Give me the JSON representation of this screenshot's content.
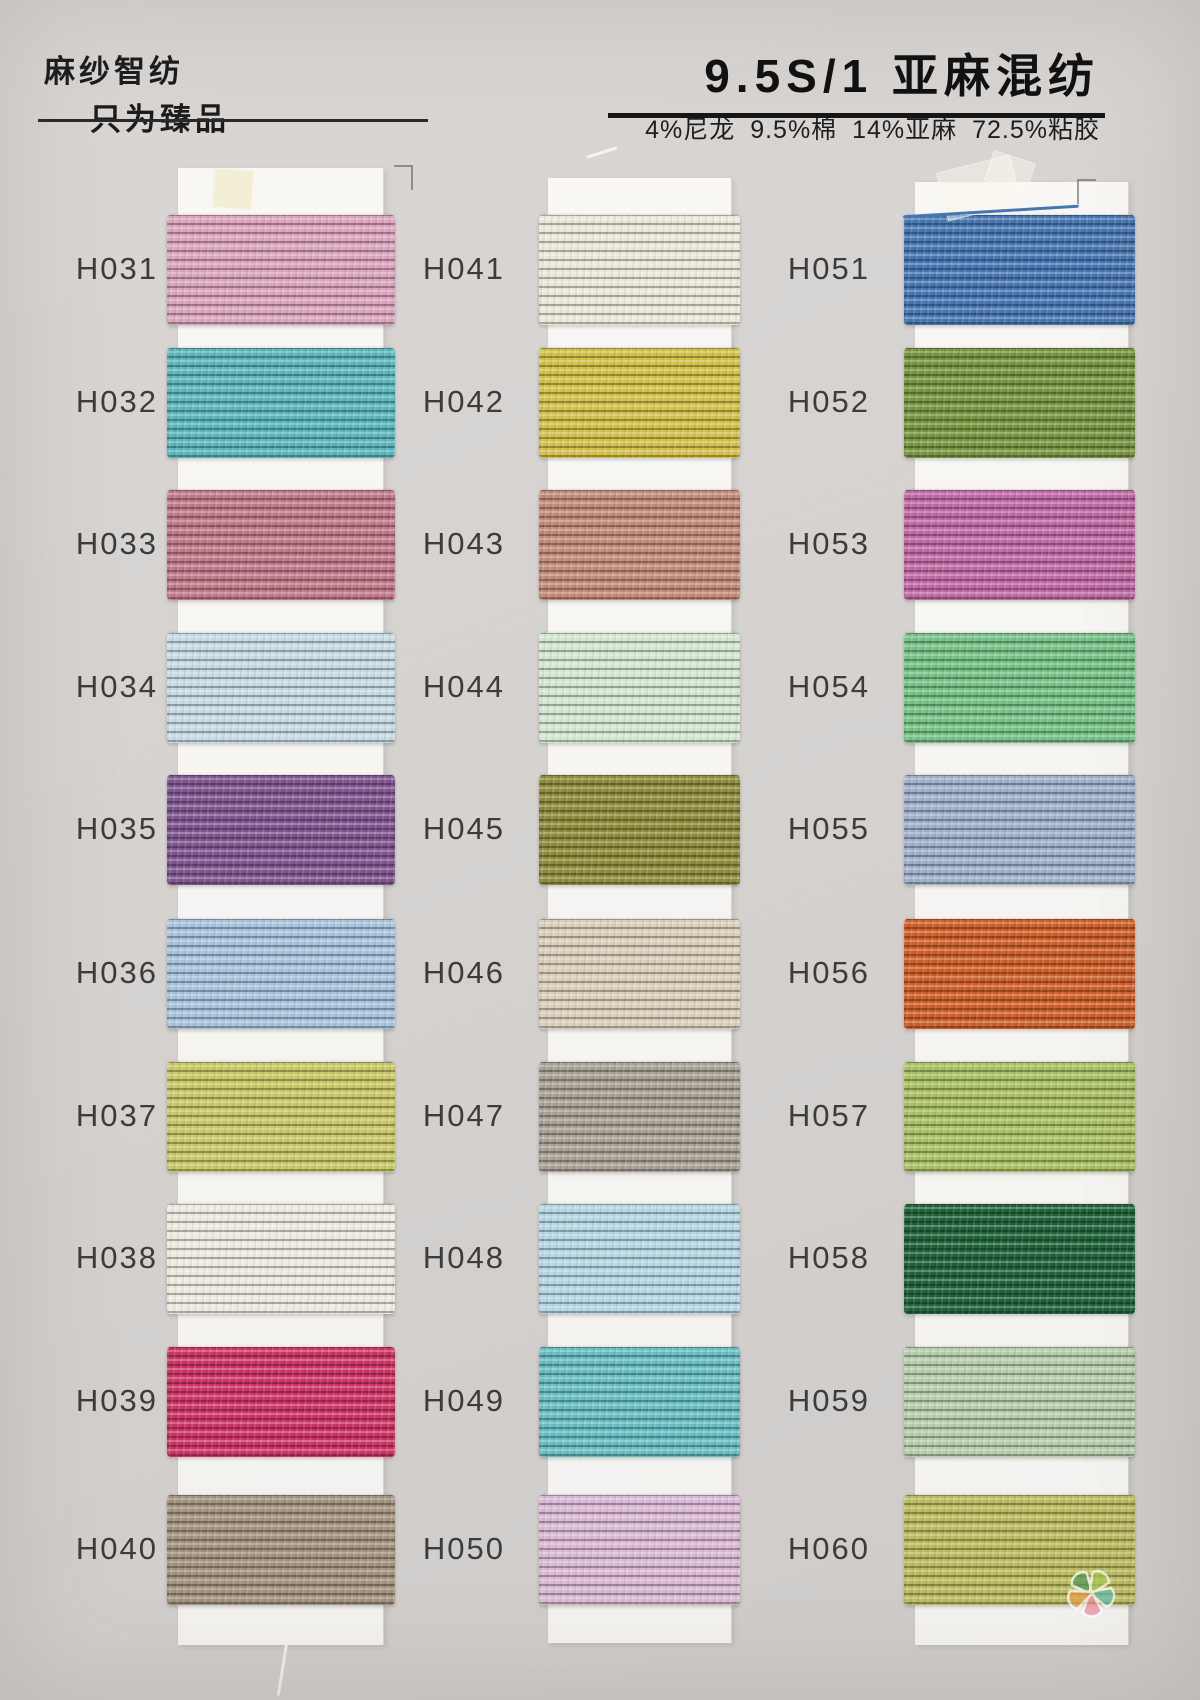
{
  "header": {
    "brand_line1": "麻纱智纺",
    "brand_line2": "只为臻品",
    "title": "9.5S/1 亚麻混纺",
    "composition": "4%尼龙 9.5%棉 14%亚麻 72.5%粘胶"
  },
  "columns": [
    {
      "samples": [
        {
          "code": "H031",
          "color": "#dba4bc"
        },
        {
          "code": "H032",
          "color": "#5ab6bd"
        },
        {
          "code": "H033",
          "color": "#c17888"
        },
        {
          "code": "H034",
          "color": "#c7dbe4"
        },
        {
          "code": "H035",
          "color": "#7f5590"
        },
        {
          "code": "H036",
          "color": "#a7c3dd"
        },
        {
          "code": "H037",
          "color": "#c8c765"
        },
        {
          "code": "H038",
          "color": "#eeeae0"
        },
        {
          "code": "H039",
          "color": "#ce3365"
        },
        {
          "code": "H040",
          "color": "#a3927d"
        }
      ]
    },
    {
      "samples": [
        {
          "code": "H041",
          "color": "#ece8d8"
        },
        {
          "code": "H042",
          "color": "#d2c147"
        },
        {
          "code": "H043",
          "color": "#c28a77"
        },
        {
          "code": "H044",
          "color": "#d2e8d1"
        },
        {
          "code": "H045",
          "color": "#8e8b3a"
        },
        {
          "code": "H046",
          "color": "#dbcfba"
        },
        {
          "code": "H047",
          "color": "#a7a094"
        },
        {
          "code": "H048",
          "color": "#b4d7e4"
        },
        {
          "code": "H049",
          "color": "#66bec2"
        },
        {
          "code": "H050",
          "color": "#dbb9d6"
        }
      ]
    },
    {
      "samples": [
        {
          "code": "H051",
          "color": "#4677b2"
        },
        {
          "code": "H052",
          "color": "#77943e"
        },
        {
          "code": "H053",
          "color": "#bf69a5"
        },
        {
          "code": "H054",
          "color": "#74c284"
        },
        {
          "code": "H055",
          "color": "#9fb0ca"
        },
        {
          "code": "H056",
          "color": "#cf5e27"
        },
        {
          "code": "H057",
          "color": "#a9c162"
        },
        {
          "code": "H058",
          "color": "#20633a"
        },
        {
          "code": "H059",
          "color": "#b7cead"
        },
        {
          "code": "H060",
          "color": "#babb5d"
        }
      ]
    }
  ],
  "logo": {
    "petals": [
      "#57975b",
      "#a8c84f",
      "#64bfb0",
      "#ee8f9e",
      "#eda04e"
    ]
  }
}
